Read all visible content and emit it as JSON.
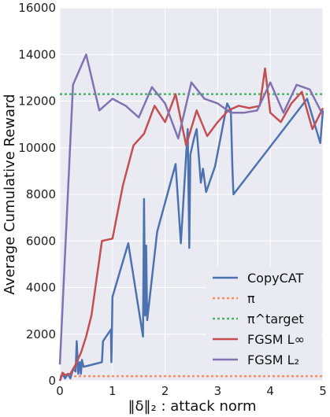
{
  "chart_data": {
    "type": "line",
    "xlabel": "‖δ‖₂ : attack norm",
    "ylabel": "Average Cumulative Reward",
    "xlim": [
      0,
      5
    ],
    "ylim": [
      0,
      16000
    ],
    "x_ticks": [
      0,
      1,
      2,
      3,
      4,
      5
    ],
    "y_ticks": [
      0,
      2000,
      4000,
      6000,
      8000,
      10000,
      12000,
      14000,
      16000
    ],
    "grid": true,
    "legend_position": "lower-right",
    "series": [
      {
        "name": "CopyCAT",
        "color": "#4c72b0",
        "style": "solid",
        "x": [
          0.0,
          0.05,
          0.1,
          0.15,
          0.2,
          0.25,
          0.3,
          0.32,
          0.35,
          0.38,
          0.4,
          0.42,
          0.45,
          0.8,
          0.82,
          0.97,
          0.98,
          1.0,
          1.3,
          1.58,
          1.6,
          1.62,
          1.64,
          1.66,
          1.85,
          2.2,
          2.3,
          2.43,
          2.46,
          2.48,
          2.55,
          2.6,
          2.68,
          2.72,
          2.78,
          2.95,
          3.18,
          3.25,
          3.28,
          3.3,
          4.7,
          4.95,
          5.0
        ],
        "y": [
          0,
          300,
          100,
          300,
          100,
          500,
          400,
          1700,
          300,
          800,
          300,
          900,
          600,
          800,
          1700,
          2200,
          800,
          3600,
          5900,
          1900,
          7800,
          2800,
          5800,
          2600,
          6400,
          9300,
          5900,
          10800,
          5700,
          9700,
          10400,
          10800,
          8500,
          9100,
          8100,
          9200,
          11900,
          11600,
          9100,
          8000,
          12100,
          10200,
          11600
        ]
      },
      {
        "name": "π",
        "color": "#ff8c5a",
        "style": "dotted",
        "x": [
          0,
          5
        ],
        "y": [
          200,
          200
        ]
      },
      {
        "name": "π^target",
        "color": "#4cb36a",
        "style": "dotted",
        "x": [
          0,
          5
        ],
        "y": [
          12300,
          12300
        ]
      },
      {
        "name": "FGSM L∞",
        "color": "#c44e52",
        "style": "solid",
        "x": [
          0.0,
          0.05,
          0.1,
          0.2,
          0.3,
          0.4,
          0.5,
          0.6,
          0.8,
          1.0,
          1.2,
          1.4,
          1.6,
          1.8,
          2.0,
          2.2,
          2.4,
          2.6,
          2.8,
          3.0,
          3.2,
          3.4,
          3.6,
          3.8,
          3.9,
          4.0,
          4.2,
          4.4,
          4.6,
          4.8,
          5.0
        ],
        "y": [
          0,
          350,
          250,
          300,
          700,
          1200,
          1900,
          2800,
          6000,
          6100,
          8400,
          10100,
          10600,
          11800,
          11100,
          12300,
          10100,
          11600,
          10500,
          11100,
          11600,
          11800,
          11700,
          11800,
          13400,
          11500,
          11100,
          11900,
          12400,
          10800,
          11700
        ]
      },
      {
        "name": "FGSM L₂",
        "color": "#8172b2",
        "style": "solid",
        "x": [
          0.0,
          0.25,
          0.5,
          0.75,
          1.0,
          1.25,
          1.5,
          1.75,
          2.0,
          2.25,
          2.5,
          2.75,
          3.0,
          3.25,
          3.5,
          3.75,
          4.0,
          4.25,
          4.5,
          4.75,
          5.0
        ],
        "y": [
          700,
          12700,
          14000,
          11600,
          12100,
          11800,
          11300,
          12600,
          11900,
          10400,
          12800,
          12100,
          11900,
          11500,
          11500,
          11600,
          12800,
          11500,
          12700,
          12500,
          11400
        ]
      }
    ]
  }
}
